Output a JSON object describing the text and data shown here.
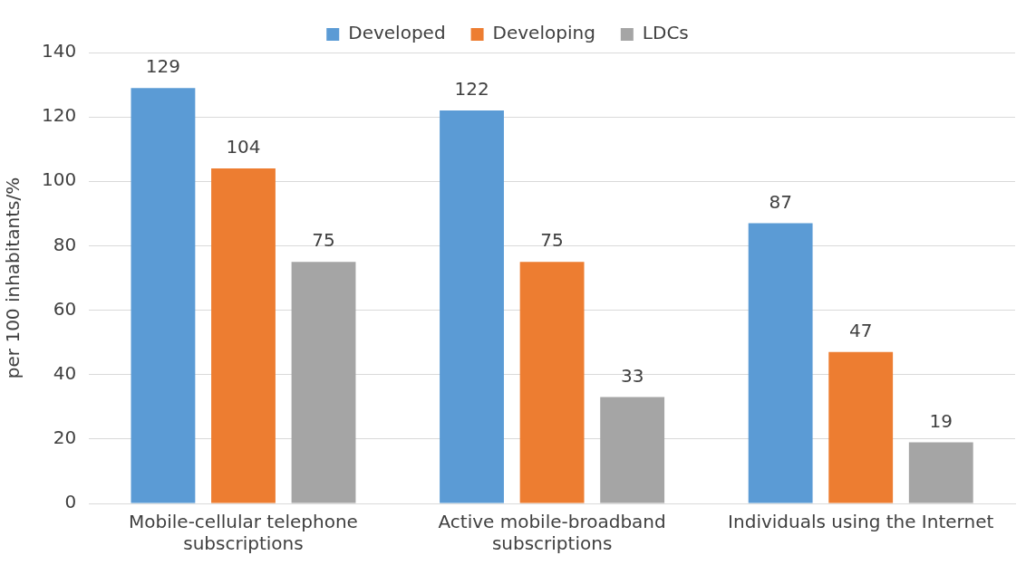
{
  "chart_data": {
    "type": "bar",
    "ylabel": "per 100 inhabitants/%",
    "categories": [
      "Mobile-cellular telephone subscriptions",
      "Active mobile-broadband subscriptions",
      "Individuals using the Internet"
    ],
    "series": [
      {
        "name": "Developed",
        "color": "#5b9bd5",
        "values": [
          129,
          122,
          87
        ]
      },
      {
        "name": "Developing",
        "color": "#ed7d31",
        "values": [
          104,
          75,
          47
        ]
      },
      {
        "name": "LDCs",
        "color": "#a5a5a5",
        "values": [
          75,
          33,
          19
        ]
      }
    ],
    "ylim": [
      0,
      140
    ],
    "yticks": [
      0,
      20,
      40,
      60,
      80,
      100,
      120,
      140
    ],
    "grid": "y",
    "legend": "top",
    "data_labels": true
  }
}
